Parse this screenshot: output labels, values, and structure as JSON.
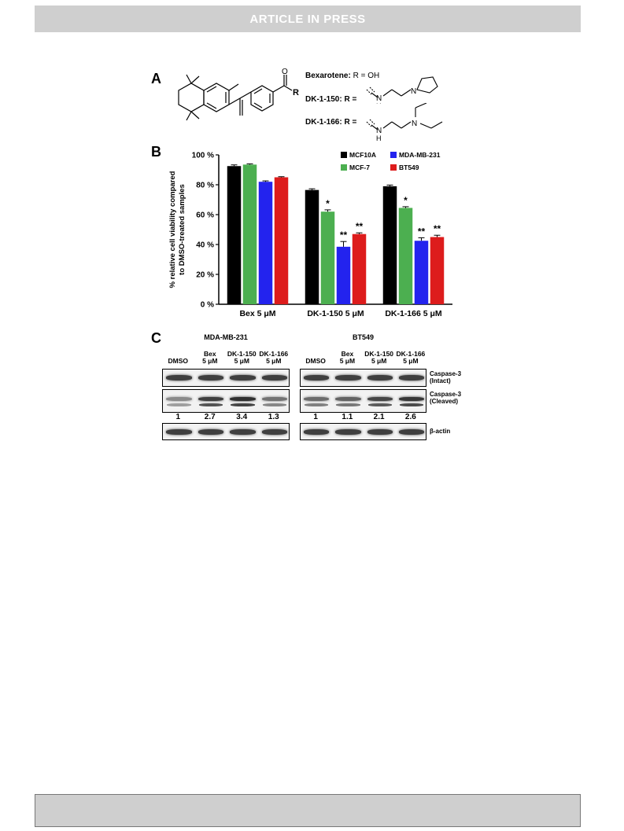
{
  "banner": {
    "text": "ARTICLE IN PRESS"
  },
  "panels": {
    "a": "A",
    "b": "B",
    "c": "C"
  },
  "compounds": [
    {
      "name": "Bexarotene",
      "r": "R = OH"
    },
    {
      "name": "DK-1-150",
      "r": "R ="
    },
    {
      "name": "DK-1-166",
      "r": "R ="
    }
  ],
  "structure_labels": {
    "o": "O",
    "r": "R",
    "n1": "N",
    "h1": "H",
    "n2": "N",
    "n3": "N",
    "h3": "H",
    "n4": "N"
  },
  "chart_data": {
    "type": "bar",
    "ylabel": "% relative cell viability compared to DMSO-treated samples",
    "ylabel_lines": [
      "% relative cell viability compared",
      "to DMSO-treated samples"
    ],
    "yticks": [
      "0 %",
      "20 %",
      "40 %",
      "60 %",
      "80 %",
      "100 %"
    ],
    "ylim": [
      0,
      100
    ],
    "categories": [
      "Bex 5 μM",
      "DK-1-150 5 μM",
      "DK-1-166 5 μM"
    ],
    "series": [
      {
        "name": "MCF10A",
        "color": "#000000",
        "values": [
          92.5,
          76.5,
          79
        ],
        "errors": [
          0.8,
          0.8,
          0.8
        ],
        "sig": [
          "",
          "",
          ""
        ]
      },
      {
        "name": "MCF-7",
        "color": "#4caf50",
        "values": [
          93.5,
          62,
          64.5
        ],
        "errors": [
          0.5,
          1.2,
          0.8
        ],
        "sig": [
          "",
          "*",
          "*"
        ]
      },
      {
        "name": "MDA-MB-231",
        "color": "#2323ee",
        "values": [
          82,
          38.5,
          42.5
        ],
        "errors": [
          0.6,
          3.5,
          2.0
        ],
        "sig": [
          "",
          "**",
          "**"
        ]
      },
      {
        "name": "BT549",
        "color": "#dd1c1c",
        "values": [
          85,
          47,
          45
        ],
        "errors": [
          0.4,
          0.8,
          1.2
        ],
        "sig": [
          "",
          "**",
          "**"
        ]
      }
    ],
    "legend": [
      {
        "name": "MCF10A",
        "color": "#000000"
      },
      {
        "name": "MDA-MB-231",
        "color": "#2323ee"
      },
      {
        "name": "MCF-7",
        "color": "#4caf50"
      },
      {
        "name": "BT549",
        "color": "#dd1c1c"
      }
    ],
    "legend_position": "top-right"
  },
  "blots": {
    "left": {
      "title": "MDA-MB-231",
      "lanes": [
        {
          "line1": "",
          "line2": "DMSO"
        },
        {
          "line1": "Bex",
          "line2": "5 μM"
        },
        {
          "line1": "DK-1-150",
          "line2": "5 μM"
        },
        {
          "line1": "DK-1-166",
          "line2": "5 μM"
        }
      ],
      "quant": [
        "1",
        "2.7",
        "3.4",
        "1.3"
      ],
      "cleaved_intensity": [
        0.35,
        0.85,
        0.95,
        0.5
      ]
    },
    "right": {
      "title": "BT549",
      "lanes": [
        {
          "line1": "",
          "line2": "DMSO"
        },
        {
          "line1": "Bex",
          "line2": "5 μM"
        },
        {
          "line1": "DK-1-150",
          "line2": "5 μM"
        },
        {
          "line1": "DK-1-166",
          "line2": "5 μM"
        }
      ],
      "quant": [
        "1",
        "1.1",
        "2.1",
        "2.6"
      ],
      "cleaved_intensity": [
        0.55,
        0.6,
        0.8,
        0.9
      ]
    },
    "row_labels": [
      {
        "line1": "Caspase-3",
        "line2": "(Intact)"
      },
      {
        "line1": "Caspase-3",
        "line2": "(Cleaved)"
      },
      {
        "line1": "β-actin",
        "line2": ""
      }
    ]
  }
}
